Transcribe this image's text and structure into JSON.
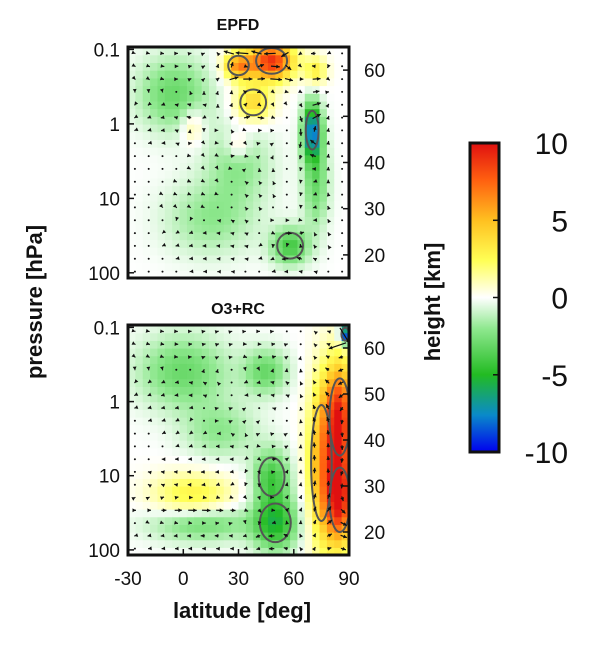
{
  "chart_data": [
    {
      "type": "heatmap",
      "title": "EPFD",
      "ylabel": "pressure [hPa]",
      "y2label": "height [km]",
      "xlim": [
        -30,
        90
      ],
      "pressure_ticks": [
        0.1,
        1,
        10,
        100
      ],
      "pressure_tick_labels": [
        "0.1",
        "1",
        "10",
        "100"
      ],
      "height_ticks": [
        20,
        30,
        40,
        50,
        60
      ],
      "height_tick_labels": [
        "20",
        "30",
        "40",
        "50",
        "60"
      ],
      "contour_lines": true,
      "vector_arrows": true,
      "features": [
        {
          "lat": 48,
          "z": 62,
          "value": 9,
          "rlat": 12,
          "rz": 4
        },
        {
          "lat": 30,
          "z": 61,
          "value": 6,
          "rlat": 8,
          "rz": 3
        },
        {
          "lat": 38,
          "z": 53,
          "value": 4,
          "rlat": 10,
          "rz": 4
        },
        {
          "lat": 72,
          "z": 60,
          "value": 3,
          "rlat": 6,
          "rz": 3
        },
        {
          "lat": 70,
          "z": 47,
          "value": -8,
          "rlat": 5,
          "rz": 6
        },
        {
          "lat": 72,
          "z": 36,
          "value": -3,
          "rlat": 7,
          "rz": 10
        },
        {
          "lat": 58,
          "z": 22,
          "value": -4,
          "rlat": 10,
          "rz": 4
        },
        {
          "lat": -5,
          "z": 55,
          "value": -3,
          "rlat": 20,
          "rz": 8
        },
        {
          "lat": 30,
          "z": 40,
          "value": -2,
          "rlat": 18,
          "rz": 8
        },
        {
          "lat": 15,
          "z": 28,
          "value": -2,
          "rlat": 25,
          "rz": 8
        },
        {
          "lat": 5,
          "z": 48,
          "value": 2,
          "rlat": 6,
          "rz": 4
        },
        {
          "lat": 30,
          "z": 44,
          "value": 2,
          "rlat": 6,
          "rz": 3
        }
      ]
    },
    {
      "type": "heatmap",
      "title": "O3+RC",
      "xlabel": "latitude [deg]",
      "ylabel": "pressure [hPa]",
      "y2label": "height [km]",
      "xlim": [
        -30,
        90
      ],
      "x_ticks": [
        -30,
        0,
        30,
        60,
        90
      ],
      "x_tick_labels": [
        "-30",
        "0",
        "30",
        "60",
        "90"
      ],
      "pressure_ticks": [
        0.1,
        1,
        10,
        100
      ],
      "pressure_tick_labels": [
        "0.1",
        "1",
        "10",
        "100"
      ],
      "height_ticks": [
        20,
        30,
        40,
        50,
        60
      ],
      "height_tick_labels": [
        "20",
        "30",
        "40",
        "50",
        "60"
      ],
      "contour_lines": true,
      "vector_arrows": true,
      "features": [
        {
          "lat": 85,
          "z": 45,
          "value": 9,
          "rlat": 8,
          "rz": 12
        },
        {
          "lat": 85,
          "z": 27,
          "value": 9,
          "rlat": 8,
          "rz": 10
        },
        {
          "lat": 75,
          "z": 35,
          "value": 5,
          "rlat": 8,
          "rz": 18
        },
        {
          "lat": 88,
          "z": 63,
          "value": -10,
          "rlat": 3,
          "rz": 2
        },
        {
          "lat": 50,
          "z": 22,
          "value": -5,
          "rlat": 12,
          "rz": 6
        },
        {
          "lat": 48,
          "z": 32,
          "value": -4,
          "rlat": 10,
          "rz": 6
        },
        {
          "lat": 5,
          "z": 28,
          "value": 3,
          "rlat": 22,
          "rz": 5
        },
        {
          "lat": 10,
          "z": 22,
          "value": -3,
          "rlat": 28,
          "rz": 4
        },
        {
          "lat": 45,
          "z": 55,
          "value": -3,
          "rlat": 12,
          "rz": 5
        },
        {
          "lat": 0,
          "z": 55,
          "value": -3,
          "rlat": 25,
          "rz": 8
        },
        {
          "lat": 20,
          "z": 42,
          "value": -2,
          "rlat": 20,
          "rz": 6
        }
      ]
    }
  ],
  "colorbar": {
    "range": [
      -10,
      10
    ],
    "ticks": [
      10,
      5,
      0,
      -5,
      -10
    ],
    "tick_labels": [
      "10",
      "5",
      "0",
      "-5",
      "-10"
    ],
    "colors": [
      "#0000ee",
      "#0a8ac9",
      "#22bb22",
      "#8fe88f",
      "#ffffff",
      "#ffff55",
      "#ffc020",
      "#ff6010",
      "#e01010"
    ]
  }
}
